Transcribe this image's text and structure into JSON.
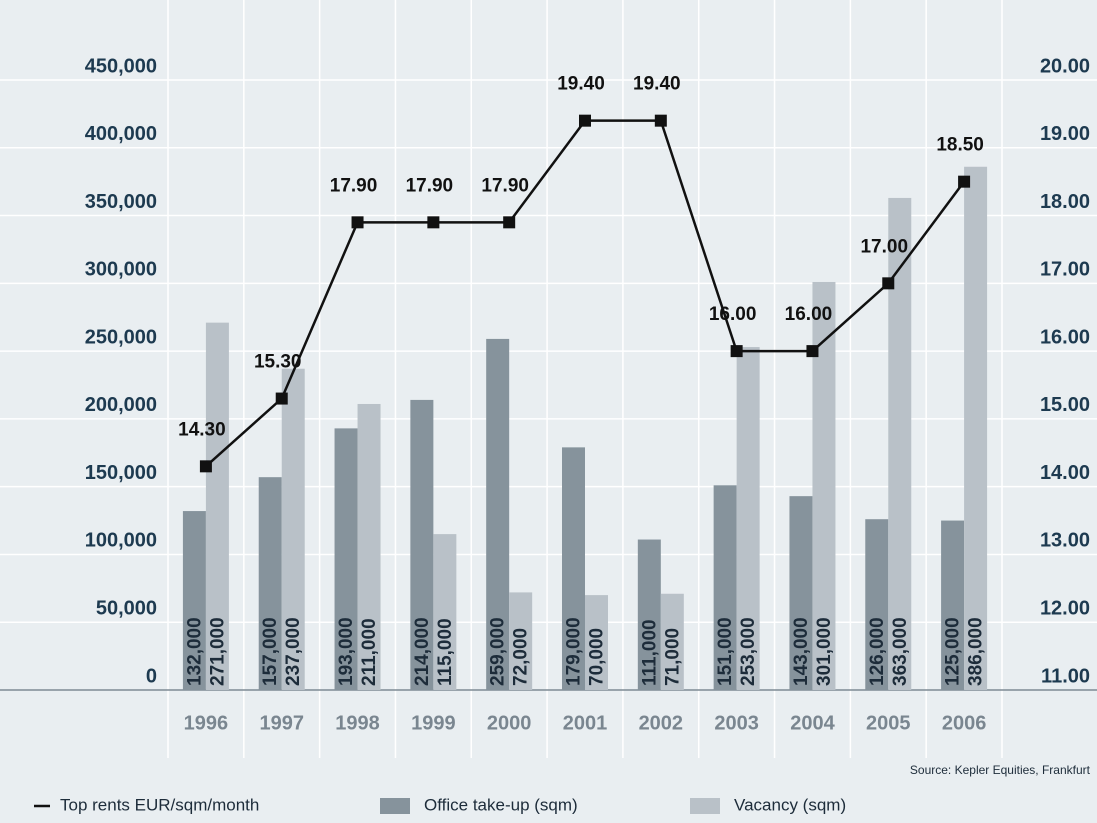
{
  "chart_data": {
    "type": "bar_line",
    "source": "Source: Kepler Equities, Frankfurt",
    "categories": [
      "1996",
      "1997",
      "1998",
      "1999",
      "2000",
      "2001",
      "2002",
      "2003",
      "2004",
      "2005",
      "2006"
    ],
    "series": [
      {
        "name": "Office take-up (sqm)",
        "type": "bar",
        "color": "#86939c",
        "values": [
          132000,
          157000,
          193000,
          214000,
          259000,
          179000,
          111000,
          151000,
          143000,
          126000,
          125000
        ],
        "value_labels": [
          "132,000",
          "157,000",
          "193,000",
          "214,000",
          "259,000",
          "179,000",
          "111,000",
          "151,000",
          "143,000",
          "126,000",
          "125,000"
        ]
      },
      {
        "name": "Vacancy (sqm)",
        "type": "bar",
        "color": "#b9c1c8",
        "values": [
          271000,
          237000,
          211000,
          115000,
          72000,
          70000,
          71000,
          253000,
          301000,
          363000,
          386000
        ],
        "value_labels": [
          "271,000",
          "237,000",
          "211,000",
          "115,000",
          "72,000",
          "70,000",
          "71,000",
          "253,000",
          "301,000",
          "363,000",
          "386,000"
        ]
      },
      {
        "name": "Top rents EUR/sqm/month",
        "type": "line",
        "axis": "y2",
        "color": "#111111",
        "values": [
          14.3,
          15.3,
          17.9,
          17.9,
          17.9,
          19.4,
          19.4,
          16,
          16,
          17,
          18.5
        ],
        "value_labels": [
          "14.30",
          "15.30",
          "17.90",
          "17.90",
          "17.90",
          "19.40",
          "19.40",
          "16.00",
          "16.00",
          "17.00",
          "18.50"
        ]
      }
    ],
    "ylim": [
      0,
      450000
    ],
    "yticks": [
      0,
      {
        "value": 50000,
        "label": "50,000"
      },
      {
        "value": 100000,
        "label": "100,000"
      },
      {
        "value": 150000,
        "label": "150,000"
      },
      {
        "value": 200000,
        "label": "200,000"
      },
      {
        "value": 250000,
        "label": "250,000"
      },
      {
        "value": 300000,
        "label": "300,000"
      },
      {
        "value": 350000,
        "label": "350,000"
      },
      {
        "value": 400000,
        "label": "400,000"
      },
      {
        "value": 450000,
        "label": "450,000"
      }
    ],
    "y2lim": [
      11,
      20
    ],
    "y2ticks": [
      {
        "value": 11,
        "label": "11.00"
      },
      {
        "value": 12,
        "label": "12.00"
      },
      {
        "value": 13,
        "label": "13.00"
      },
      {
        "value": 14,
        "label": "14.00"
      },
      {
        "value": 15,
        "label": "15.00"
      },
      {
        "value": 16,
        "label": "16.00"
      },
      {
        "value": 17,
        "label": "17.00"
      },
      {
        "value": 18,
        "label": "18.00"
      },
      {
        "value": 19,
        "label": "19.00"
      },
      {
        "value": 20,
        "label": "20.00"
      }
    ],
    "grid": true
  }
}
